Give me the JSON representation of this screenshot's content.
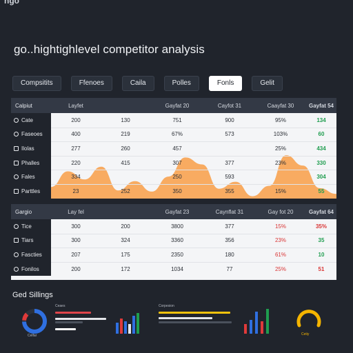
{
  "app": {
    "logo": "ngo",
    "title": "go..hightighlevel competitor analysis"
  },
  "tabs": [
    {
      "label": "Compsitits"
    },
    {
      "label": "Ffenoes"
    },
    {
      "label": "Caila"
    },
    {
      "label": "Polles"
    },
    {
      "label": "Fonls",
      "active": true
    },
    {
      "label": "Gelit"
    }
  ],
  "table1": {
    "headers": [
      "Calpiut",
      "Layfet",
      "",
      "Gayfat 20",
      "Cayfot 31",
      "Caayfat 30",
      "Gayfat 54"
    ],
    "rows": [
      {
        "icon": "clock-icon",
        "label": "Cate",
        "cells": [
          "200",
          "130",
          "751",
          "900",
          "95%",
          "134"
        ],
        "last_status": "positive"
      },
      {
        "icon": "gear-icon",
        "label": "Faseoes",
        "cells": [
          "400",
          "219",
          "67%",
          "573",
          "103%",
          "60"
        ],
        "last_status": "positive"
      },
      {
        "icon": "square-icon",
        "label": "Ilolas",
        "cells": [
          "277",
          "260",
          "457",
          "",
          "25%",
          "434"
        ],
        "last_status": "positive"
      },
      {
        "icon": "grid-icon",
        "label": "Phalles",
        "cells": [
          "220",
          "415",
          "307",
          "377",
          "23%",
          "330"
        ],
        "last_status": "positive"
      },
      {
        "icon": "target-icon",
        "label": "Fales",
        "cells": [
          "334",
          "",
          "250",
          "593",
          "",
          "304"
        ],
        "last_status": "positive"
      },
      {
        "icon": "layers-icon",
        "label": "Parttles",
        "cells": [
          "23",
          "252",
          "350",
          "355",
          "15%",
          "55"
        ],
        "last_status": "positive"
      }
    ]
  },
  "table2": {
    "headers": [
      "Gargio",
      "Lay fel",
      "",
      "Gayfat 23",
      "Caynflat 31",
      "Gay fot 20",
      "Gayfat 64"
    ],
    "rows": [
      {
        "icon": "gear-icon",
        "label": "Tice",
        "cells": [
          "300",
          "200",
          "3800",
          "377",
          "15%",
          "35%"
        ],
        "last_status": "negative"
      },
      {
        "icon": "box-icon",
        "label": "Tiars",
        "cells": [
          "300",
          "324",
          "3360",
          "356",
          "23%",
          "35"
        ],
        "last_status": "positive"
      },
      {
        "icon": "clock-icon",
        "label": "Fascties",
        "cells": [
          "207",
          "175",
          "2350",
          "180",
          "61%",
          "10"
        ],
        "last_status": "positive"
      },
      {
        "icon": "target-icon",
        "label": "Fonilos",
        "cells": [
          "200",
          "172",
          "1034",
          "77",
          "25%",
          "51"
        ],
        "last_status": "negative"
      }
    ]
  },
  "section": {
    "title": "Ged Sillings"
  },
  "widgets": {
    "list_title": "Ceaes",
    "donut_label": "Celfar",
    "compare_title": "Corpesion",
    "gauge_label": "Cetiy"
  },
  "colors": {
    "background": "#20242c",
    "area_fill": "#f7a454",
    "positive": "#1f9d4f",
    "negative": "#d93535",
    "donut": "#2f6fe0",
    "gauge": "#f4b400"
  },
  "chart_data": {
    "type": "area",
    "values": [
      20,
      47,
      33,
      55,
      14,
      30,
      12,
      38,
      71,
      59,
      17,
      29,
      4,
      22,
      75,
      57,
      18,
      8
    ],
    "ylim": [
      0,
      100
    ],
    "color": "#f7a454"
  }
}
